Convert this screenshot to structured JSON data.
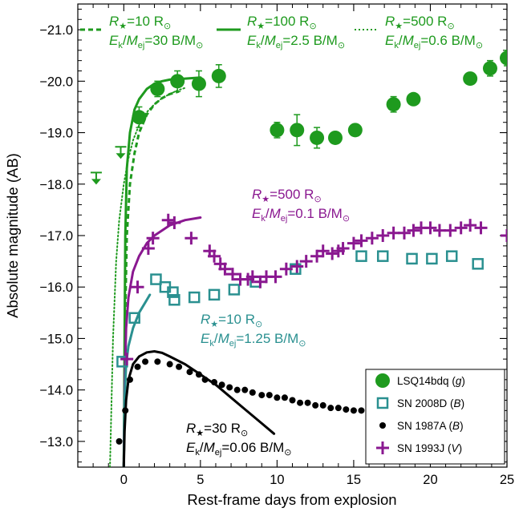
{
  "chart_data": {
    "type": "scatter",
    "xlabel": "Rest-frame days from explosion",
    "ylabel": "Absolute magnitude (AB)",
    "xlim": [
      -3,
      25
    ],
    "ylim": [
      -12.5,
      -21.5
    ],
    "y_inverted": true,
    "xticks": [
      "0",
      "5",
      "10",
      "15",
      "20",
      "25"
    ],
    "xtick_values": [
      0,
      5,
      10,
      15,
      20,
      25
    ],
    "yticks": [
      "−13.0",
      "−14.0",
      "−15.0",
      "−16.0",
      "−17.0",
      "−18.0",
      "−19.0",
      "−20.0",
      "−21.0"
    ],
    "ytick_values": [
      -13,
      -14,
      -15,
      -16,
      -17,
      -18,
      -19,
      -20,
      -21
    ],
    "grid": false,
    "legend_placement": "bottom-right",
    "colors": {
      "green": "#1e9a1e",
      "teal": "#2a9090",
      "black": "#000000",
      "purple": "#8a1890"
    },
    "series": [
      {
        "name": "LSQ14bdq",
        "band": "g",
        "marker": "filled-circle",
        "color": "#1e9a1e",
        "points": [
          {
            "x": 1.0,
            "y": -19.3,
            "err": 0.2
          },
          {
            "x": 2.2,
            "y": -19.85,
            "err": 0.15
          },
          {
            "x": 3.5,
            "y": -20.0,
            "err": 0.2
          },
          {
            "x": 4.9,
            "y": -19.95,
            "err": 0.25
          },
          {
            "x": 6.2,
            "y": -20.1,
            "err": 0.22
          },
          {
            "x": 10.0,
            "y": -19.05,
            "err": 0.15
          },
          {
            "x": 11.3,
            "y": -19.05,
            "err": 0.3
          },
          {
            "x": 12.6,
            "y": -18.9,
            "err": 0.2
          },
          {
            "x": 13.8,
            "y": -18.9,
            "err": 0.0
          },
          {
            "x": 15.1,
            "y": -19.05,
            "err": 0.0
          },
          {
            "x": 17.6,
            "y": -19.55,
            "err": 0.15
          },
          {
            "x": 18.9,
            "y": -19.65,
            "err": 0.0
          },
          {
            "x": 22.6,
            "y": -20.05,
            "err": 0.0
          },
          {
            "x": 23.9,
            "y": -20.25,
            "err": 0.15
          },
          {
            "x": 25.0,
            "y": -20.45,
            "err": 0.15
          }
        ],
        "upper_limits": [
          {
            "x": -1.8,
            "y": -18.1
          },
          {
            "x": -0.2,
            "y": -18.6
          }
        ]
      },
      {
        "name": "SN 2008D",
        "band": "B",
        "marker": "open-square",
        "color": "#2a9090",
        "points": [
          {
            "x": -0.1,
            "y": -14.55
          },
          {
            "x": 0.7,
            "y": -15.4
          },
          {
            "x": 2.1,
            "y": -16.15
          },
          {
            "x": 2.7,
            "y": -16.0
          },
          {
            "x": 3.2,
            "y": -15.9
          },
          {
            "x": 3.3,
            "y": -15.75
          },
          {
            "x": 4.6,
            "y": -15.8
          },
          {
            "x": 5.9,
            "y": -15.85
          },
          {
            "x": 7.2,
            "y": -15.95
          },
          {
            "x": 8.6,
            "y": -16.1
          },
          {
            "x": 11.2,
            "y": -16.35
          },
          {
            "x": 15.5,
            "y": -16.6
          },
          {
            "x": 16.9,
            "y": -16.6
          },
          {
            "x": 18.8,
            "y": -16.55
          },
          {
            "x": 20.1,
            "y": -16.55
          },
          {
            "x": 21.4,
            "y": -16.6
          },
          {
            "x": 23.1,
            "y": -16.45
          }
        ]
      },
      {
        "name": "SN 1987A",
        "band": "B",
        "marker": "filled-dot",
        "color": "#000000",
        "points": [
          {
            "x": -0.3,
            "y": -13.0
          },
          {
            "x": 0.1,
            "y": -13.6
          },
          {
            "x": 0.4,
            "y": -14.2
          },
          {
            "x": 0.9,
            "y": -14.45
          },
          {
            "x": 1.4,
            "y": -14.55
          },
          {
            "x": 2.2,
            "y": -14.55
          },
          {
            "x": 3.0,
            "y": -14.5
          },
          {
            "x": 3.6,
            "y": -14.45
          },
          {
            "x": 4.3,
            "y": -14.35
          },
          {
            "x": 4.9,
            "y": -14.3
          },
          {
            "x": 5.3,
            "y": -14.2
          },
          {
            "x": 5.9,
            "y": -14.15
          },
          {
            "x": 6.4,
            "y": -14.1
          },
          {
            "x": 6.9,
            "y": -14.05
          },
          {
            "x": 7.4,
            "y": -14.0
          },
          {
            "x": 7.9,
            "y": -14.0
          },
          {
            "x": 8.4,
            "y": -13.95
          },
          {
            "x": 9.0,
            "y": -13.9
          },
          {
            "x": 9.5,
            "y": -13.9
          },
          {
            "x": 10.0,
            "y": -13.85
          },
          {
            "x": 10.5,
            "y": -13.85
          },
          {
            "x": 11.0,
            "y": -13.8
          },
          {
            "x": 11.5,
            "y": -13.75
          },
          {
            "x": 12.0,
            "y": -13.75
          },
          {
            "x": 12.5,
            "y": -13.7
          },
          {
            "x": 13.0,
            "y": -13.7
          },
          {
            "x": 13.5,
            "y": -13.65
          },
          {
            "x": 14.0,
            "y": -13.65
          },
          {
            "x": 14.5,
            "y": -13.62
          },
          {
            "x": 15.0,
            "y": -13.6
          },
          {
            "x": 15.5,
            "y": -13.6
          },
          {
            "x": 16.0,
            "y": -13.6
          },
          {
            "x": 16.5,
            "y": -13.58
          },
          {
            "x": 24.6,
            "y": -13.55
          }
        ]
      },
      {
        "name": "SN 1993J",
        "band": "V",
        "marker": "plus",
        "color": "#8a1890",
        "points": [
          {
            "x": 0.2,
            "y": -14.6
          },
          {
            "x": 0.9,
            "y": -16.0
          },
          {
            "x": 1.6,
            "y": -16.75
          },
          {
            "x": 1.9,
            "y": -16.95
          },
          {
            "x": 2.9,
            "y": -17.3
          },
          {
            "x": 3.3,
            "y": -17.25
          },
          {
            "x": 4.4,
            "y": -16.95
          },
          {
            "x": 5.6,
            "y": -16.7
          },
          {
            "x": 5.9,
            "y": -16.6
          },
          {
            "x": 6.3,
            "y": -16.45
          },
          {
            "x": 6.6,
            "y": -16.35
          },
          {
            "x": 7.1,
            "y": -16.25
          },
          {
            "x": 7.6,
            "y": -16.15
          },
          {
            "x": 8.1,
            "y": -16.15
          },
          {
            "x": 8.4,
            "y": -16.2
          },
          {
            "x": 8.9,
            "y": -16.1
          },
          {
            "x": 9.3,
            "y": -16.2
          },
          {
            "x": 9.9,
            "y": -16.2
          },
          {
            "x": 10.6,
            "y": -16.35
          },
          {
            "x": 11.3,
            "y": -16.4
          },
          {
            "x": 11.9,
            "y": -16.5
          },
          {
            "x": 12.6,
            "y": -16.6
          },
          {
            "x": 13.0,
            "y": -16.7
          },
          {
            "x": 13.6,
            "y": -16.65
          },
          {
            "x": 14.0,
            "y": -16.7
          },
          {
            "x": 14.3,
            "y": -16.75
          },
          {
            "x": 15.0,
            "y": -16.85
          },
          {
            "x": 15.5,
            "y": -16.9
          },
          {
            "x": 16.2,
            "y": -16.95
          },
          {
            "x": 16.9,
            "y": -17.0
          },
          {
            "x": 17.6,
            "y": -17.05
          },
          {
            "x": 18.3,
            "y": -17.05
          },
          {
            "x": 18.9,
            "y": -17.1
          },
          {
            "x": 19.4,
            "y": -17.15
          },
          {
            "x": 20.0,
            "y": -17.15
          },
          {
            "x": 20.6,
            "y": -17.1
          },
          {
            "x": 21.3,
            "y": -17.1
          },
          {
            "x": 22.0,
            "y": -17.15
          },
          {
            "x": 22.6,
            "y": -17.2
          },
          {
            "x": 23.3,
            "y": -17.15
          },
          {
            "x": 25.0,
            "y": -17.0
          }
        ]
      }
    ],
    "models": [
      {
        "color": "#1e9a1e",
        "dash": "dashed",
        "points": [
          [
            0.0,
            -12.5
          ],
          [
            0.05,
            -13.8
          ],
          [
            0.1,
            -15.5
          ],
          [
            0.2,
            -17.0
          ],
          [
            0.4,
            -18.0
          ],
          [
            0.7,
            -18.6
          ],
          [
            1.0,
            -19.0
          ],
          [
            1.5,
            -19.35
          ],
          [
            2.0,
            -19.55
          ],
          [
            2.5,
            -19.67
          ],
          [
            3.0,
            -19.75
          ],
          [
            3.6,
            -19.8
          ]
        ]
      },
      {
        "color": "#1e9a1e",
        "dash": "solid",
        "points": [
          [
            0.0,
            -12.5
          ],
          [
            0.05,
            -15.0
          ],
          [
            0.1,
            -17.0
          ],
          [
            0.2,
            -18.3
          ],
          [
            0.4,
            -19.0
          ],
          [
            0.7,
            -19.45
          ],
          [
            1.0,
            -19.65
          ],
          [
            1.5,
            -19.85
          ],
          [
            2.0,
            -19.95
          ],
          [
            2.5,
            -20.0
          ],
          [
            3.0,
            -20.03
          ],
          [
            4.0,
            -20.05
          ],
          [
            5.0,
            -20.07
          ]
        ]
      },
      {
        "color": "#1e9a1e",
        "dash": "dotted",
        "points": [
          [
            -0.9,
            -12.5
          ],
          [
            -0.7,
            -15.0
          ],
          [
            -0.5,
            -16.5
          ],
          [
            -0.3,
            -17.3
          ],
          [
            0.0,
            -18.0
          ],
          [
            0.3,
            -18.5
          ],
          [
            0.6,
            -18.85
          ],
          [
            1.0,
            -19.15
          ],
          [
            1.5,
            -19.4
          ],
          [
            2.0,
            -19.55
          ],
          [
            2.5,
            -19.67
          ],
          [
            3.0,
            -19.75
          ],
          [
            3.5,
            -19.82
          ],
          [
            4.0,
            -19.87
          ]
        ]
      },
      {
        "color": "#8a1890",
        "dash": "solid",
        "points": [
          [
            0.0,
            -12.5
          ],
          [
            0.05,
            -14.0
          ],
          [
            0.15,
            -15.2
          ],
          [
            0.3,
            -15.8
          ],
          [
            0.6,
            -16.3
          ],
          [
            1.0,
            -16.6
          ],
          [
            1.5,
            -16.85
          ],
          [
            2.0,
            -17.0
          ],
          [
            3.0,
            -17.2
          ],
          [
            4.0,
            -17.3
          ],
          [
            5.0,
            -17.35
          ]
        ]
      },
      {
        "color": "#2a9090",
        "dash": "solid",
        "points": [
          [
            0.0,
            -12.5
          ],
          [
            0.05,
            -13.8
          ],
          [
            0.15,
            -14.5
          ],
          [
            0.3,
            -14.85
          ],
          [
            0.6,
            -15.2
          ],
          [
            1.0,
            -15.5
          ],
          [
            1.4,
            -15.7
          ],
          [
            1.7,
            -15.85
          ]
        ]
      },
      {
        "color": "#000000",
        "dash": "solid",
        "points": [
          [
            0.0,
            -12.5
          ],
          [
            0.05,
            -13.2
          ],
          [
            0.15,
            -13.8
          ],
          [
            0.3,
            -14.2
          ],
          [
            0.6,
            -14.5
          ],
          [
            1.0,
            -14.65
          ],
          [
            1.5,
            -14.73
          ],
          [
            2.0,
            -14.75
          ],
          [
            2.5,
            -14.72
          ],
          [
            3.0,
            -14.65
          ],
          [
            4.0,
            -14.5
          ],
          [
            5.0,
            -14.3
          ],
          [
            6.0,
            -14.1
          ],
          [
            7.0,
            -13.85
          ],
          [
            8.0,
            -13.6
          ],
          [
            9.0,
            -13.35
          ],
          [
            9.8,
            -13.15
          ]
        ]
      }
    ],
    "legend": [
      {
        "name": "LSQ14bdq",
        "band": "g",
        "marker": "filled-circle",
        "color": "#1e9a1e"
      },
      {
        "name": "SN 2008D",
        "band": "B",
        "marker": "open-square",
        "color": "#2a9090"
      },
      {
        "name": "SN 1987A",
        "band": "B",
        "marker": "filled-dot",
        "color": "#000000"
      },
      {
        "name": "SN 1993J",
        "band": "V",
        "marker": "plus",
        "color": "#8a1890"
      }
    ],
    "annotations": [
      {
        "id": "top1",
        "color": "#1e9a1e",
        "r_value": "=10 R",
        "e_value": "=30 B/M"
      },
      {
        "id": "top2",
        "color": "#1e9a1e",
        "r_value": "=100 R",
        "e_value": "=2.5 B/M"
      },
      {
        "id": "top3",
        "color": "#1e9a1e",
        "r_value": "=500 R",
        "e_value": "=0.6 B/M"
      },
      {
        "id": "purple",
        "color": "#8a1890",
        "r_value": "=500 R",
        "e_value": "=0.1 B/M"
      },
      {
        "id": "teal",
        "color": "#2a9090",
        "r_value": "=10 R",
        "e_value": "=1.25 B/M"
      },
      {
        "id": "black",
        "color": "#000000",
        "r_value": "=30 R",
        "e_value": "=0.06 B/M"
      }
    ]
  }
}
